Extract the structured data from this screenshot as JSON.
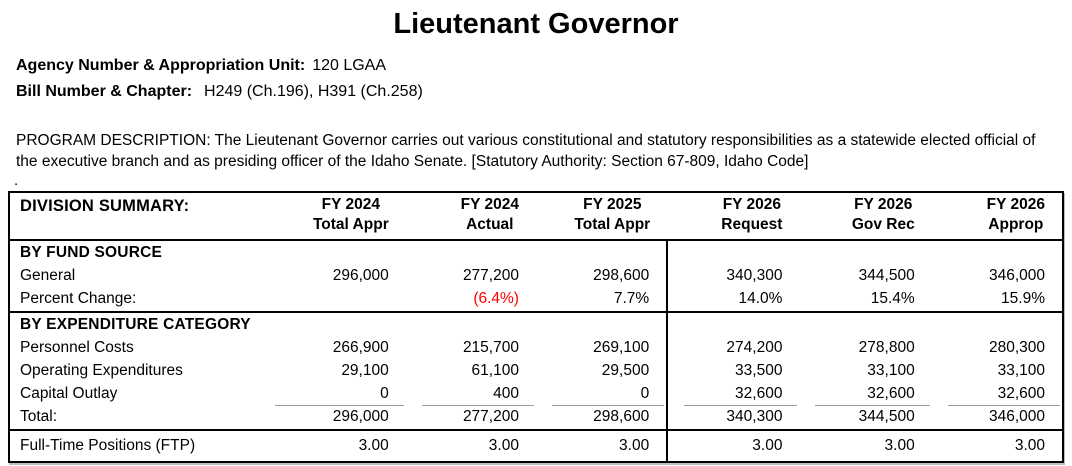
{
  "page": {
    "title": "Lieutenant Governor",
    "agency_label": "Agency Number & Appropriation Unit:",
    "agency_value": "120 LGAA",
    "bill_label": "Bill Number & Chapter:",
    "bill_value": "H249 (Ch.196), H391 (Ch.258)",
    "program_description": "PROGRAM DESCRIPTION: The Lieutenant Governor carries out various constitutional and statutory responsibilities as a statewide elected official of the executive branch and as presiding officer of the Idaho Senate.  [Statutory Authority: Section 67-809, Idaho Code]",
    "trailing_dot": "."
  },
  "table": {
    "title": "DIVISION SUMMARY:",
    "columns": [
      {
        "line1": "FY 2024",
        "line2": "Total Appr"
      },
      {
        "line1": "FY 2024",
        "line2": "Actual"
      },
      {
        "line1": "FY 2025",
        "line2": "Total Appr"
      },
      {
        "line1": "FY 2026",
        "line2": "Request"
      },
      {
        "line1": "FY 2026",
        "line2": "Gov Rec"
      },
      {
        "line1": "FY 2026",
        "line2": "Approp"
      }
    ],
    "fund_source_header": "BY FUND SOURCE",
    "expenditure_header": "BY EXPENDITURE CATEGORY",
    "rows": {
      "general": {
        "label": "General",
        "values": [
          "296,000",
          "277,200",
          "298,600",
          "340,300",
          "344,500",
          "346,000"
        ]
      },
      "percent_change": {
        "label": "Percent Change:",
        "values": [
          "",
          "(6.4%)",
          "7.7%",
          "14.0%",
          "15.4%",
          "15.9%"
        ]
      },
      "personnel": {
        "label": "Personnel Costs",
        "values": [
          "266,900",
          "215,700",
          "269,100",
          "274,200",
          "278,800",
          "280,300"
        ]
      },
      "operating": {
        "label": "Operating Expenditures",
        "values": [
          "29,100",
          "61,100",
          "29,500",
          "33,500",
          "33,100",
          "33,100"
        ]
      },
      "capital": {
        "label": "Capital Outlay",
        "values": [
          "0",
          "400",
          "0",
          "32,600",
          "32,600",
          "32,600"
        ]
      },
      "total": {
        "label": "Total:",
        "values": [
          "296,000",
          "277,200",
          "298,600",
          "340,300",
          "344,500",
          "346,000"
        ]
      },
      "ftp": {
        "label": "Full-Time Positions (FTP)",
        "values": [
          "3.00",
          "3.00",
          "3.00",
          "3.00",
          "3.00",
          "3.00"
        ]
      }
    },
    "colors": {
      "negative_percent": "#ff0000",
      "rule_black": "#000000",
      "sum_line_gray": "#9d9d9d"
    }
  }
}
